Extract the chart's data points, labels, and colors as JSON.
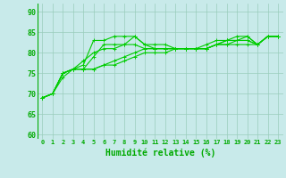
{
  "line1": [
    69,
    70,
    74,
    76,
    76,
    79,
    82,
    82,
    82,
    84,
    82,
    82,
    82,
    81,
    81,
    81,
    82,
    83,
    83,
    84,
    84,
    82,
    84,
    84
  ],
  "line2": [
    69,
    70,
    75,
    76,
    77,
    83,
    83,
    84,
    84,
    84,
    82,
    81,
    81,
    81,
    81,
    81,
    81,
    82,
    83,
    83,
    84,
    82,
    84,
    84
  ],
  "line3": [
    69,
    70,
    75,
    76,
    78,
    80,
    81,
    81,
    82,
    82,
    81,
    81,
    81,
    81,
    81,
    81,
    81,
    82,
    83,
    83,
    83,
    82,
    84,
    84
  ],
  "line4": [
    69,
    70,
    75,
    76,
    76,
    76,
    77,
    78,
    79,
    80,
    81,
    81,
    81,
    81,
    81,
    81,
    81,
    82,
    82,
    83,
    83,
    82,
    84,
    84
  ],
  "line5": [
    69,
    70,
    75,
    76,
    76,
    76,
    77,
    77,
    78,
    79,
    80,
    80,
    80,
    81,
    81,
    81,
    81,
    82,
    82,
    82,
    82,
    82,
    84,
    84
  ],
  "x": [
    0,
    1,
    2,
    3,
    4,
    5,
    6,
    7,
    8,
    9,
    10,
    11,
    12,
    13,
    14,
    15,
    16,
    17,
    18,
    19,
    20,
    21,
    22,
    23
  ],
  "xlabels": [
    "0",
    "1",
    "2",
    "3",
    "4",
    "5",
    "6",
    "7",
    "8",
    "9",
    "10",
    "11",
    "12",
    "13",
    "14",
    "15",
    "16",
    "17",
    "18",
    "19",
    "20",
    "21",
    "22",
    "23"
  ],
  "ylim": [
    59,
    92
  ],
  "yticks": [
    60,
    65,
    70,
    75,
    80,
    85,
    90
  ],
  "line_color": "#00cc00",
  "marker": "+",
  "bg_color": "#c8eaea",
  "grid_color": "#99ccbb",
  "xlabel": "Humidité relative (%)",
  "xlabel_color": "#00aa00",
  "tick_color": "#00aa00"
}
